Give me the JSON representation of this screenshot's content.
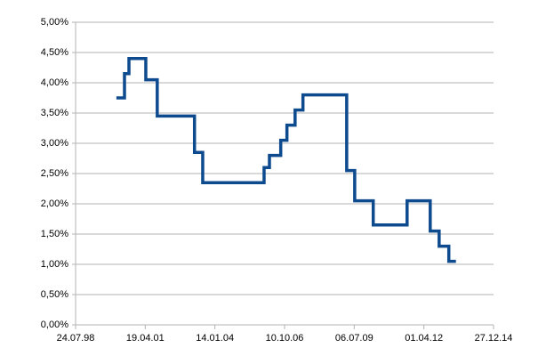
{
  "chart_data": {
    "type": "line",
    "step": true,
    "x": [
      "01.03.00",
      "25.06.00",
      "28.08.00",
      "27.04.01",
      "08.10.01",
      "27.03.03",
      "23.07.03",
      "20.12.05",
      "07.03.06",
      "16.08.06",
      "13.11.06",
      "10.03.07",
      "01.07.07",
      "20.03.09",
      "13.07.09",
      "05.04.10",
      "04.08.11",
      "01.07.12",
      "06.11.12",
      "25.03.13",
      "05.07.13"
    ],
    "series": [
      {
        "color": "#0d4a8e",
        "values": [
          3.75,
          4.15,
          4.4,
          4.05,
          3.45,
          2.85,
          2.35,
          2.6,
          2.8,
          3.05,
          3.3,
          3.55,
          3.8,
          2.55,
          2.05,
          1.65,
          2.05,
          1.55,
          1.3,
          1.05,
          1.05
        ]
      }
    ],
    "xlim": [
      "24.07.98",
      "27.12.14"
    ],
    "xticks": [
      "24.07.98",
      "19.04.01",
      "14.01.04",
      "10.10.06",
      "06.07.09",
      "01.04.12",
      "27.12.14"
    ],
    "ylim": [
      0,
      5
    ],
    "yticks": [
      {
        "value": 0,
        "label": "0,00%"
      },
      {
        "value": 0.5,
        "label": "0,50%"
      },
      {
        "value": 1,
        "label": "1,00%"
      },
      {
        "value": 1.5,
        "label": "1,50%"
      },
      {
        "value": 2,
        "label": "2,00%"
      },
      {
        "value": 2.5,
        "label": "2,50%"
      },
      {
        "value": 3,
        "label": "3,00%"
      },
      {
        "value": 3.5,
        "label": "3,50%"
      },
      {
        "value": 4,
        "label": "4,00%"
      },
      {
        "value": 4.5,
        "label": "4,50%"
      },
      {
        "value": 5,
        "label": "5,00%"
      }
    ],
    "grid": true
  }
}
